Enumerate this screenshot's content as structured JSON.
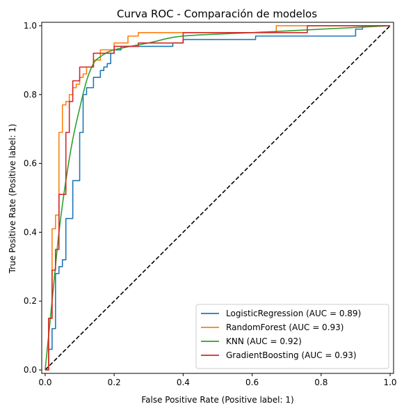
{
  "chart_data": {
    "type": "line",
    "title": "Curva ROC - Comparación de modelos",
    "xlabel": "False Positive Rate (Positive label: 1)",
    "ylabel": "True Positive Rate (Positive label: 1)",
    "xlim": [
      -0.01,
      1.01
    ],
    "ylim": [
      -0.01,
      1.01
    ],
    "xticks": [
      "0.0",
      "0.2",
      "0.4",
      "0.6",
      "0.8",
      "1.0"
    ],
    "yticks": [
      "0.0",
      "0.2",
      "0.4",
      "0.6",
      "0.8",
      "1.0"
    ],
    "grid": false,
    "legend_position": "bottom-right",
    "chance_line": {
      "x": [
        0,
        1
      ],
      "y": [
        0,
        1
      ],
      "color": "#000000",
      "style": "dashed"
    },
    "series": [
      {
        "name": "LogisticRegression (AUC = 0.89)",
        "color": "#1f77b4",
        "step": true,
        "x": [
          0,
          0.01,
          0.01,
          0.02,
          0.02,
          0.03,
          0.03,
          0.04,
          0.04,
          0.05,
          0.05,
          0.06,
          0.06,
          0.08,
          0.08,
          0.1,
          0.1,
          0.11,
          0.11,
          0.12,
          0.12,
          0.14,
          0.14,
          0.16,
          0.16,
          0.17,
          0.17,
          0.18,
          0.18,
          0.19,
          0.19,
          0.2,
          0.2,
          0.22,
          0.22,
          0.27,
          0.27,
          0.37,
          0.37,
          0.4,
          0.4,
          0.61,
          0.61,
          0.9,
          0.9,
          0.92,
          0.92,
          1.0
        ],
        "y": [
          0,
          0,
          0.06,
          0.06,
          0.12,
          0.12,
          0.28,
          0.28,
          0.3,
          0.3,
          0.32,
          0.32,
          0.44,
          0.44,
          0.55,
          0.55,
          0.69,
          0.69,
          0.8,
          0.8,
          0.82,
          0.82,
          0.85,
          0.85,
          0.87,
          0.87,
          0.88,
          0.88,
          0.89,
          0.89,
          0.92,
          0.92,
          0.93,
          0.93,
          0.94,
          0.94,
          0.94,
          0.94,
          0.95,
          0.95,
          0.96,
          0.96,
          0.97,
          0.97,
          0.99,
          0.99,
          1.0,
          1.0
        ]
      },
      {
        "name": "RandomForest (AUC = 0.93)",
        "color": "#ff7f0e",
        "step": true,
        "x": [
          0,
          0.01,
          0.01,
          0.02,
          0.02,
          0.03,
          0.03,
          0.04,
          0.04,
          0.05,
          0.05,
          0.06,
          0.06,
          0.07,
          0.07,
          0.08,
          0.08,
          0.09,
          0.09,
          0.1,
          0.1,
          0.11,
          0.11,
          0.12,
          0.12,
          0.14,
          0.14,
          0.16,
          0.16,
          0.2,
          0.2,
          0.24,
          0.24,
          0.27,
          0.27,
          0.52,
          0.52,
          0.67,
          0.67,
          1.0
        ],
        "y": [
          0,
          0,
          0.15,
          0.15,
          0.41,
          0.41,
          0.45,
          0.45,
          0.69,
          0.69,
          0.77,
          0.77,
          0.78,
          0.78,
          0.8,
          0.8,
          0.82,
          0.82,
          0.83,
          0.83,
          0.85,
          0.85,
          0.86,
          0.86,
          0.88,
          0.88,
          0.9,
          0.9,
          0.93,
          0.93,
          0.95,
          0.95,
          0.97,
          0.97,
          0.98,
          0.98,
          0.98,
          0.98,
          1.0,
          1.0
        ]
      },
      {
        "name": "KNN (AUC = 0.92)",
        "color": "#2ca02c",
        "step": false,
        "x": [
          0,
          0.02,
          0.04,
          0.06,
          0.08,
          0.1,
          0.12,
          0.14,
          0.16,
          0.2,
          0.3,
          0.4,
          0.6,
          0.8,
          1.0
        ],
        "y": [
          0,
          0.2,
          0.4,
          0.55,
          0.67,
          0.76,
          0.84,
          0.89,
          0.91,
          0.93,
          0.95,
          0.97,
          0.98,
          0.99,
          1.0
        ]
      },
      {
        "name": "GradientBoosting (AUC = 0.93)",
        "color": "#d62728",
        "step": true,
        "x": [
          0,
          0.01,
          0.01,
          0.02,
          0.02,
          0.03,
          0.03,
          0.04,
          0.04,
          0.06,
          0.06,
          0.07,
          0.07,
          0.08,
          0.08,
          0.1,
          0.1,
          0.11,
          0.11,
          0.14,
          0.14,
          0.2,
          0.2,
          0.27,
          0.27,
          0.4,
          0.4,
          0.76,
          0.76,
          1.0
        ],
        "y": [
          0,
          0,
          0.15,
          0.15,
          0.29,
          0.29,
          0.35,
          0.35,
          0.51,
          0.51,
          0.69,
          0.69,
          0.78,
          0.78,
          0.84,
          0.84,
          0.88,
          0.88,
          0.88,
          0.88,
          0.92,
          0.92,
          0.94,
          0.94,
          0.95,
          0.95,
          0.98,
          0.98,
          1.0,
          1.0
        ]
      }
    ]
  }
}
